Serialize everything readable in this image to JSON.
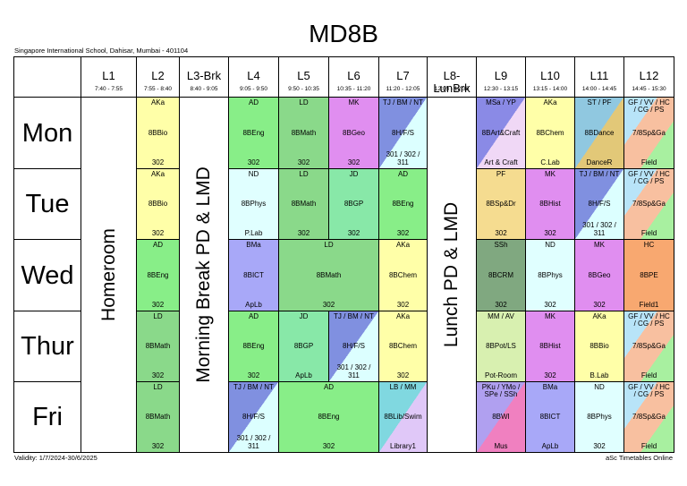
{
  "header": {
    "title": "MD8B",
    "school": "Singapore International School, Dahisar, Mumbai - 401104",
    "validity": "Validity: 1/7/2024-30/6/2025",
    "footer": "aSc Timetables Online"
  },
  "periods": [
    {
      "name": "L1",
      "time": "7:40 - 7:55",
      "note": "Homeroom"
    },
    {
      "name": "L2",
      "time": "7:55 - 8:40"
    },
    {
      "name": "L3-Brk",
      "time": "8:40 - 9:05",
      "note": "Morning Break PD & LMD"
    },
    {
      "name": "L4",
      "time": "9:05 - 9:50"
    },
    {
      "name": "L5",
      "time": "9:50 - 10:35"
    },
    {
      "name": "L6",
      "time": "10:35 - 11:20"
    },
    {
      "name": "L7",
      "time": "11:20 - 12:05"
    },
    {
      "name": "L8-LunBrk",
      "time": "12:05 - 12:30",
      "note": "Lunch PD & LMD"
    },
    {
      "name": "L9",
      "time": "12:30 - 13:15"
    },
    {
      "name": "L10",
      "time": "13:15 - 14:00"
    },
    {
      "name": "L11",
      "time": "14:00 - 14:45"
    },
    {
      "name": "L12",
      "time": "14:45 - 15:30"
    }
  ],
  "rows": [
    {
      "day": "Mon",
      "cells": [
        null,
        {
          "teacher": "AKa",
          "subject": "8BBio",
          "room": "302",
          "colors": [
            "#ffffa8"
          ]
        },
        null,
        {
          "teacher": "AD",
          "subject": "8BEng",
          "room": "302",
          "colors": [
            "#88ee88"
          ]
        },
        {
          "teacher": "LD",
          "subject": "8BMath",
          "room": "302",
          "colors": [
            "#8ad98a"
          ]
        },
        {
          "teacher": "MK",
          "subject": "8BGeo",
          "room": "302",
          "colors": [
            "#e08ef0"
          ]
        },
        {
          "teacher": "TJ / BM / NT",
          "subject": "8H/F/S",
          "room": "301 / 302 / 311",
          "colors": [
            "#8090e0",
            "#dcffff"
          ]
        },
        null,
        {
          "teacher": "MSa / YP",
          "subject": "8BArt&Craft",
          "room": "Art & Craft",
          "colors": [
            "#8a8ae6",
            "#f0d8f6"
          ]
        },
        {
          "teacher": "AKa",
          "subject": "8BChem",
          "room": "C.Lab",
          "colors": [
            "#ffffa8"
          ]
        },
        {
          "teacher": "ST / PF",
          "subject": "8BDance",
          "room": "DanceR",
          "colors": [
            "#90c8e0",
            "#e2c878"
          ]
        },
        {
          "teacher": "GF / VV / HC / CG / PS",
          "subject": "7/8Sp&Ga",
          "room": "Field",
          "colors": [
            "#b8e4f8",
            "#f8c0a0",
            "#a8f0a0"
          ]
        }
      ]
    },
    {
      "day": "Tue",
      "cells": [
        null,
        {
          "teacher": "AKa",
          "subject": "8BBio",
          "room": "302",
          "colors": [
            "#ffffa8"
          ]
        },
        null,
        {
          "teacher": "ND",
          "subject": "8BPhys",
          "room": "P.Lab",
          "colors": [
            "#e0ffff"
          ]
        },
        {
          "teacher": "LD",
          "subject": "8BMath",
          "room": "302",
          "colors": [
            "#8ad98a"
          ]
        },
        {
          "teacher": "JD",
          "subject": "8BGP",
          "room": "302",
          "colors": [
            "#88e8a8"
          ]
        },
        {
          "teacher": "AD",
          "subject": "8BEng",
          "room": "302",
          "colors": [
            "#88ee88"
          ]
        },
        null,
        {
          "teacher": "PF",
          "subject": "8BSp&Dr",
          "room": "302",
          "colors": [
            "#f5dc90"
          ]
        },
        {
          "teacher": "MK",
          "subject": "8BHist",
          "room": "302",
          "colors": [
            "#e08ef0"
          ]
        },
        {
          "teacher": "TJ / BM / NT",
          "subject": "8H/F/S",
          "room": "301 / 302 / 311",
          "colors": [
            "#8090e0",
            "#dcffff"
          ]
        },
        {
          "teacher": "GF / VV / HC / CG / PS",
          "subject": "7/8Sp&Ga",
          "room": "Field",
          "colors": [
            "#b8e4f8",
            "#f8c0a0",
            "#a8f0a0"
          ]
        }
      ]
    },
    {
      "day": "Wed",
      "cells": [
        null,
        {
          "teacher": "AD",
          "subject": "8BEng",
          "room": "302",
          "colors": [
            "#88ee88"
          ]
        },
        null,
        {
          "teacher": "BMa",
          "subject": "8BICT",
          "room": "ApLb",
          "colors": [
            "#a8a8f8"
          ]
        },
        {
          "teacher": "LD",
          "subject": "8BMath",
          "room": "302",
          "colors": [
            "#8ad98a"
          ]
        },
        null,
        {
          "teacher": "AKa",
          "subject": "8BChem",
          "room": "302",
          "colors": [
            "#ffffa8"
          ]
        },
        null,
        {
          "teacher": "SSh",
          "subject": "8BCRM",
          "room": "302",
          "colors": [
            "#80a880"
          ]
        },
        {
          "teacher": "ND",
          "subject": "8BPhys",
          "room": "302",
          "colors": [
            "#e0ffff"
          ]
        },
        {
          "teacher": "MK",
          "subject": "8BGeo",
          "room": "302",
          "colors": [
            "#e08ef0"
          ]
        },
        {
          "teacher": "HC",
          "subject": "8BPE",
          "room": "Field1",
          "colors": [
            "#f8a870"
          ]
        }
      ]
    },
    {
      "day": "Thur",
      "cells": [
        null,
        {
          "teacher": "LD",
          "subject": "8BMath",
          "room": "302",
          "colors": [
            "#8ad98a"
          ]
        },
        null,
        {
          "teacher": "AD",
          "subject": "8BEng",
          "room": "302",
          "colors": [
            "#88ee88"
          ]
        },
        {
          "teacher": "JD",
          "subject": "8BGP",
          "room": "ApLb",
          "colors": [
            "#88e8a8"
          ]
        },
        {
          "teacher": "TJ / BM / NT",
          "subject": "8H/F/S",
          "room": "301 / 302 / 311",
          "colors": [
            "#8090e0",
            "#dcffff"
          ]
        },
        {
          "teacher": "AKa",
          "subject": "8BChem",
          "room": "302",
          "colors": [
            "#ffffa8"
          ]
        },
        null,
        {
          "teacher": "MM / AV",
          "subject": "8BPot/LS",
          "room": "Pot-Room",
          "colors": [
            "#d8f0b0"
          ]
        },
        {
          "teacher": "MK",
          "subject": "8BHist",
          "room": "302",
          "colors": [
            "#e08ef0"
          ]
        },
        {
          "teacher": "AKa",
          "subject": "8BBio",
          "room": "B.Lab",
          "colors": [
            "#ffffa8"
          ]
        },
        {
          "teacher": "GF / VV / HC / CG / PS",
          "subject": "7/8Sp&Ga",
          "room": "Field",
          "colors": [
            "#b8e4f8",
            "#f8c0a0",
            "#a8f0a0"
          ]
        }
      ]
    },
    {
      "day": "Fri",
      "cells": [
        null,
        {
          "teacher": "LD",
          "subject": "8BMath",
          "room": "302",
          "colors": [
            "#8ad98a"
          ]
        },
        null,
        {
          "teacher": "TJ / BM / NT",
          "subject": "8H/F/S",
          "room": "301 / 302 / 311",
          "colors": [
            "#8090e0",
            "#dcffff"
          ]
        },
        {
          "teacher": "AD",
          "subject": "8BEng",
          "room": "302",
          "colors": [
            "#88ee88"
          ]
        },
        null,
        {
          "teacher": "LB / MM",
          "subject": "8BLib/Swim",
          "room": "Library1",
          "colors": [
            "#80d8e0",
            "#e0c8f8"
          ]
        },
        null,
        {
          "teacher": "PKu / YMo / SPe / SSh",
          "subject": "8BWI",
          "room": "Mus",
          "colors": [
            "#b0a0f0",
            "#f080c0"
          ]
        },
        {
          "teacher": "BMa",
          "subject": "8BICT",
          "room": "ApLb",
          "colors": [
            "#a8a8f8"
          ]
        },
        {
          "teacher": "ND",
          "subject": "8BPhys",
          "room": "302",
          "colors": [
            "#e0ffff"
          ]
        },
        {
          "teacher": "GF / VV / HC / CG / PS",
          "subject": "7/8Sp&Ga",
          "room": "Field",
          "colors": [
            "#b8e4f8",
            "#f8c0a0",
            "#a8f0a0"
          ]
        }
      ]
    }
  ]
}
